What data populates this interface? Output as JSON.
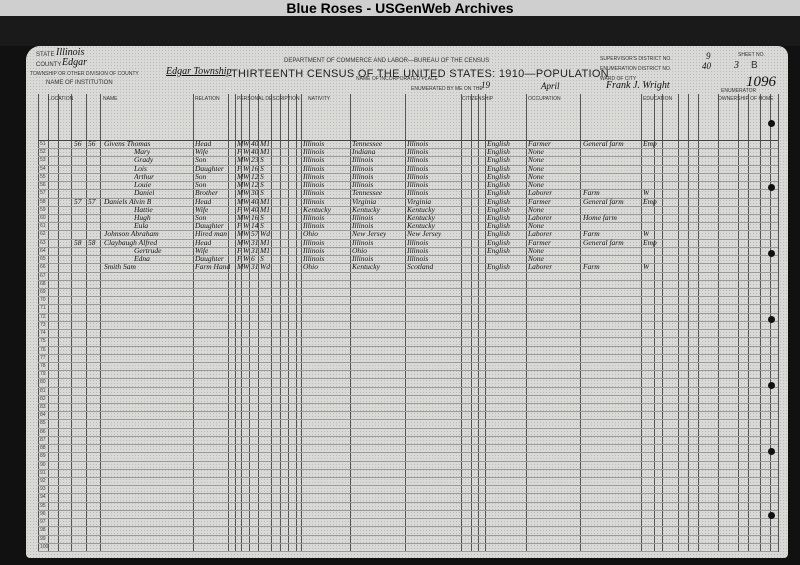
{
  "watermark": "Blue Roses - USGenWeb Archives",
  "form": {
    "department": "DEPARTMENT OF COMMERCE AND LABOR—BUREAU OF THE CENSUS",
    "title": "THIRTEENTH CENSUS OF THE UNITED STATES: 1910—POPULATION",
    "state_label": "State",
    "state": "Illinois",
    "county_label": "County",
    "county": "Edgar",
    "township_label": "Township or other division of county",
    "township": "Edgar Township",
    "institution_label": "Name of institution",
    "incorporated_place_label": "Name of incorporated place",
    "supervisor_district_label": "Supervisor's District No.",
    "supervisor_district": "9",
    "enumeration_district_label": "Enumeration District No.",
    "enumeration_district": "40",
    "ward_label": "Ward of city",
    "sheet_label": "Sheet No.",
    "sheet": "3",
    "sheet_side": "B",
    "stamp_number": "1096",
    "enumerated_label": "Enumerated by me on the",
    "enumerated_day": "19",
    "enumerated_month": "April",
    "enumerator": "Frank J. Wright",
    "enumerator_label": "Enumerator"
  },
  "columns": [
    "Location",
    "Name",
    "Relation",
    "Personal description",
    "Nativity",
    "Citizenship",
    "Occupation",
    "Education",
    "Ownership of home"
  ],
  "row_numbers_start": 51,
  "row_numbers_end": 100,
  "records": [
    {
      "dwelling": "56",
      "family": "56",
      "name": "Givens Thomas",
      "relation": "Head",
      "sex": "M",
      "race": "W",
      "age": "40",
      "marital": "M1",
      "birth": "Illinois",
      "father_birth": "Tennessee",
      "mother_birth": "Illinois",
      "language": "English",
      "occupation": "Farmer",
      "industry": "General farm",
      "class": "Emp"
    },
    {
      "dwelling": "",
      "family": "",
      "name": "Mary",
      "relation": "Wife",
      "sex": "F",
      "race": "W",
      "age": "40",
      "marital": "M1",
      "birth": "Illinois",
      "father_birth": "Indiana",
      "mother_birth": "Illinois",
      "language": "English",
      "occupation": "None",
      "industry": "",
      "class": ""
    },
    {
      "dwelling": "",
      "family": "",
      "name": "Grady",
      "relation": "Son",
      "sex": "M",
      "race": "W",
      "age": "23",
      "marital": "S",
      "birth": "Illinois",
      "father_birth": "Illinois",
      "mother_birth": "Illinois",
      "language": "English",
      "occupation": "None",
      "industry": "",
      "class": ""
    },
    {
      "dwelling": "",
      "family": "",
      "name": "Lois",
      "relation": "Daughter",
      "sex": "F",
      "race": "W",
      "age": "16",
      "marital": "S",
      "birth": "Illinois",
      "father_birth": "Illinois",
      "mother_birth": "Illinois",
      "language": "English",
      "occupation": "None",
      "industry": "",
      "class": ""
    },
    {
      "dwelling": "",
      "family": "",
      "name": "Arthur",
      "relation": "Son",
      "sex": "M",
      "race": "W",
      "age": "12",
      "marital": "S",
      "birth": "Illinois",
      "father_birth": "Illinois",
      "mother_birth": "Illinois",
      "language": "English",
      "occupation": "None",
      "industry": "",
      "class": ""
    },
    {
      "dwelling": "",
      "family": "",
      "name": "Louie",
      "relation": "Son",
      "sex": "M",
      "race": "W",
      "age": "12",
      "marital": "S",
      "birth": "Illinois",
      "father_birth": "Illinois",
      "mother_birth": "Illinois",
      "language": "English",
      "occupation": "None",
      "industry": "",
      "class": ""
    },
    {
      "dwelling": "",
      "family": "",
      "name": "Daniel",
      "relation": "Brother",
      "sex": "M",
      "race": "W",
      "age": "30",
      "marital": "S",
      "birth": "Illinois",
      "father_birth": "Tennessee",
      "mother_birth": "Illinois",
      "language": "English",
      "occupation": "Laborer",
      "industry": "Farm",
      "class": "W"
    },
    {
      "dwelling": "57",
      "family": "57",
      "name": "Daniels Alvin B",
      "relation": "Head",
      "sex": "M",
      "race": "W",
      "age": "40",
      "marital": "M1",
      "birth": "Illinois",
      "father_birth": "Virginia",
      "mother_birth": "Virginia",
      "language": "English",
      "occupation": "Farmer",
      "industry": "General farm",
      "class": "Emp"
    },
    {
      "dwelling": "",
      "family": "",
      "name": "Hattie",
      "relation": "Wife",
      "sex": "F",
      "race": "W",
      "age": "40",
      "marital": "M1",
      "birth": "Kentucky",
      "father_birth": "Kentucky",
      "mother_birth": "Kentucky",
      "language": "English",
      "occupation": "None",
      "industry": "",
      "class": ""
    },
    {
      "dwelling": "",
      "family": "",
      "name": "Hugh",
      "relation": "Son",
      "sex": "M",
      "race": "W",
      "age": "16",
      "marital": "S",
      "birth": "Illinois",
      "father_birth": "Illinois",
      "mother_birth": "Kentucky",
      "language": "English",
      "occupation": "Laborer",
      "industry": "Home farm",
      "class": ""
    },
    {
      "dwelling": "",
      "family": "",
      "name": "Eula",
      "relation": "Daughter",
      "sex": "F",
      "race": "W",
      "age": "14",
      "marital": "S",
      "birth": "Illinois",
      "father_birth": "Illinois",
      "mother_birth": "Kentucky",
      "language": "English",
      "occupation": "None",
      "industry": "",
      "class": ""
    },
    {
      "dwelling": "",
      "family": "",
      "name": "Johnson Abraham",
      "relation": "Hired man",
      "sex": "M",
      "race": "W",
      "age": "57",
      "marital": "Wd",
      "birth": "Ohio",
      "father_birth": "New Jersey",
      "mother_birth": "New Jersey",
      "language": "English",
      "occupation": "Laborer",
      "industry": "Farm",
      "class": "W"
    },
    {
      "dwelling": "58",
      "family": "58",
      "name": "Claybaugh Alfred",
      "relation": "Head",
      "sex": "M",
      "race": "W",
      "age": "31",
      "marital": "M1",
      "birth": "Illinois",
      "father_birth": "Illinois",
      "mother_birth": "Illinois",
      "language": "English",
      "occupation": "Farmer",
      "industry": "General farm",
      "class": "Emp"
    },
    {
      "dwelling": "",
      "family": "",
      "name": "Gertrude",
      "relation": "Wife",
      "sex": "F",
      "race": "W",
      "age": "31",
      "marital": "M1",
      "birth": "Illinois",
      "father_birth": "Ohio",
      "mother_birth": "Illinois",
      "language": "English",
      "occupation": "None",
      "industry": "",
      "class": ""
    },
    {
      "dwelling": "",
      "family": "",
      "name": "Edna",
      "relation": "Daughter",
      "sex": "F",
      "race": "W",
      "age": "6",
      "marital": "S",
      "birth": "Illinois",
      "father_birth": "Illinois",
      "mother_birth": "Illinois",
      "language": "",
      "occupation": "None",
      "industry": "",
      "class": ""
    },
    {
      "dwelling": "",
      "family": "",
      "name": "Smith Sam",
      "relation": "Farm Hand",
      "sex": "M",
      "race": "W",
      "age": "31",
      "marital": "Wd",
      "birth": "Ohio",
      "father_birth": "Kentucky",
      "mother_birth": "Scotland",
      "language": "English",
      "occupation": "Laborer",
      "industry": "Farm",
      "class": "W"
    }
  ]
}
